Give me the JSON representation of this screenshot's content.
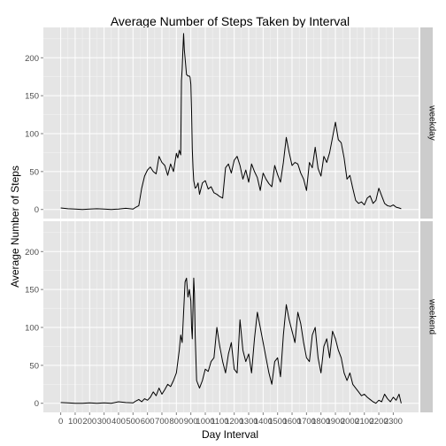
{
  "chart_data": {
    "type": "line",
    "title": "Average Number of Steps Taken by Interval",
    "xlabel": "Day Interval",
    "ylabel": "Average Number of Steps",
    "xlim": [
      -120,
      2475
    ],
    "ylim": [
      -12,
      240
    ],
    "x_ticks": [
      0,
      100,
      200,
      300,
      400,
      500,
      600,
      700,
      800,
      900,
      1000,
      1100,
      1200,
      1300,
      1400,
      1500,
      1600,
      1700,
      1800,
      1900,
      2000,
      2100,
      2200,
      2300
    ],
    "x_tick_labels": [
      "0",
      "100",
      "200",
      "300",
      "400",
      "500",
      "600",
      "700",
      "800",
      "900",
      "1000",
      "1100",
      "1200",
      "1300",
      "1400",
      "1500",
      "1600",
      "1700",
      "1800",
      "1900",
      "2000",
      "2100",
      "2200",
      "2300"
    ],
    "y_ticks": [
      0,
      50,
      100,
      150,
      200
    ],
    "y_tick_labels": [
      "0",
      "50",
      "100",
      "150",
      "200"
    ],
    "grid": true,
    "facets": [
      {
        "label": "weekday",
        "points": [
          [
            0,
            2
          ],
          [
            50,
            1
          ],
          [
            100,
            0.5
          ],
          [
            150,
            0
          ],
          [
            200,
            0.5
          ],
          [
            250,
            1
          ],
          [
            300,
            0.5
          ],
          [
            350,
            0
          ],
          [
            400,
            0.5
          ],
          [
            450,
            1.5
          ],
          [
            500,
            0.5
          ],
          [
            520,
            3
          ],
          [
            540,
            5
          ],
          [
            560,
            28
          ],
          [
            580,
            44
          ],
          [
            600,
            52
          ],
          [
            620,
            56
          ],
          [
            640,
            50
          ],
          [
            660,
            47
          ],
          [
            680,
            70
          ],
          [
            700,
            62
          ],
          [
            720,
            58
          ],
          [
            740,
            45
          ],
          [
            760,
            60
          ],
          [
            780,
            50
          ],
          [
            800,
            74
          ],
          [
            810,
            68
          ],
          [
            820,
            78
          ],
          [
            830,
            72
          ],
          [
            835,
            170
          ],
          [
            840,
            185
          ],
          [
            845,
            210
          ],
          [
            850,
            232
          ],
          [
            855,
            210
          ],
          [
            860,
            200
          ],
          [
            870,
            178
          ],
          [
            880,
            176
          ],
          [
            890,
            176
          ],
          [
            895,
            174
          ],
          [
            900,
            165
          ],
          [
            905,
            130
          ],
          [
            910,
            80
          ],
          [
            915,
            55
          ],
          [
            920,
            38
          ],
          [
            930,
            28
          ],
          [
            940,
            30
          ],
          [
            950,
            35
          ],
          [
            960,
            20
          ],
          [
            980,
            35
          ],
          [
            1000,
            38
          ],
          [
            1020,
            27
          ],
          [
            1040,
            30
          ],
          [
            1060,
            22
          ],
          [
            1080,
            20
          ],
          [
            1100,
            17
          ],
          [
            1120,
            15
          ],
          [
            1140,
            55
          ],
          [
            1160,
            60
          ],
          [
            1180,
            48
          ],
          [
            1200,
            65
          ],
          [
            1220,
            70
          ],
          [
            1240,
            58
          ],
          [
            1260,
            40
          ],
          [
            1280,
            52
          ],
          [
            1300,
            36
          ],
          [
            1320,
            60
          ],
          [
            1340,
            50
          ],
          [
            1360,
            42
          ],
          [
            1380,
            25
          ],
          [
            1400,
            48
          ],
          [
            1420,
            40
          ],
          [
            1440,
            34
          ],
          [
            1460,
            30
          ],
          [
            1480,
            58
          ],
          [
            1500,
            46
          ],
          [
            1520,
            36
          ],
          [
            1540,
            62
          ],
          [
            1560,
            95
          ],
          [
            1580,
            75
          ],
          [
            1600,
            58
          ],
          [
            1620,
            62
          ],
          [
            1640,
            60
          ],
          [
            1660,
            48
          ],
          [
            1680,
            40
          ],
          [
            1700,
            25
          ],
          [
            1720,
            62
          ],
          [
            1740,
            55
          ],
          [
            1760,
            82
          ],
          [
            1780,
            54
          ],
          [
            1800,
            44
          ],
          [
            1820,
            70
          ],
          [
            1840,
            62
          ],
          [
            1860,
            75
          ],
          [
            1880,
            95
          ],
          [
            1900,
            115
          ],
          [
            1920,
            92
          ],
          [
            1940,
            88
          ],
          [
            1960,
            68
          ],
          [
            1980,
            40
          ],
          [
            2000,
            45
          ],
          [
            2020,
            28
          ],
          [
            2040,
            12
          ],
          [
            2060,
            8
          ],
          [
            2080,
            10
          ],
          [
            2100,
            6
          ],
          [
            2120,
            15
          ],
          [
            2140,
            18
          ],
          [
            2160,
            8
          ],
          [
            2180,
            12
          ],
          [
            2200,
            28
          ],
          [
            2220,
            18
          ],
          [
            2240,
            8
          ],
          [
            2260,
            5
          ],
          [
            2280,
            4
          ],
          [
            2300,
            6
          ],
          [
            2320,
            3
          ],
          [
            2340,
            2
          ],
          [
            2355,
            1
          ]
        ]
      },
      {
        "label": "weekend",
        "points": [
          [
            0,
            1
          ],
          [
            50,
            0.5
          ],
          [
            100,
            0
          ],
          [
            150,
            0
          ],
          [
            200,
            0.5
          ],
          [
            250,
            0
          ],
          [
            300,
            0.5
          ],
          [
            350,
            0
          ],
          [
            400,
            2
          ],
          [
            450,
            1
          ],
          [
            500,
            0.5
          ],
          [
            520,
            3
          ],
          [
            540,
            5
          ],
          [
            560,
            2
          ],
          [
            580,
            6
          ],
          [
            600,
            4
          ],
          [
            620,
            8
          ],
          [
            640,
            15
          ],
          [
            660,
            10
          ],
          [
            680,
            20
          ],
          [
            700,
            12
          ],
          [
            720,
            18
          ],
          [
            740,
            25
          ],
          [
            760,
            22
          ],
          [
            780,
            30
          ],
          [
            800,
            40
          ],
          [
            810,
            55
          ],
          [
            820,
            70
          ],
          [
            830,
            90
          ],
          [
            840,
            80
          ],
          [
            850,
            120
          ],
          [
            855,
            140
          ],
          [
            860,
            160
          ],
          [
            870,
            165
          ],
          [
            880,
            140
          ],
          [
            890,
            150
          ],
          [
            900,
            135
          ],
          [
            905,
            100
          ],
          [
            910,
            85
          ],
          [
            920,
            165
          ],
          [
            925,
            145
          ],
          [
            930,
            90
          ],
          [
            940,
            30
          ],
          [
            950,
            25
          ],
          [
            960,
            20
          ],
          [
            980,
            30
          ],
          [
            1000,
            45
          ],
          [
            1020,
            42
          ],
          [
            1040,
            55
          ],
          [
            1060,
            60
          ],
          [
            1080,
            100
          ],
          [
            1100,
            75
          ],
          [
            1120,
            55
          ],
          [
            1140,
            40
          ],
          [
            1160,
            65
          ],
          [
            1180,
            80
          ],
          [
            1200,
            45
          ],
          [
            1220,
            40
          ],
          [
            1240,
            110
          ],
          [
            1260,
            70
          ],
          [
            1280,
            55
          ],
          [
            1300,
            65
          ],
          [
            1320,
            40
          ],
          [
            1340,
            85
          ],
          [
            1360,
            120
          ],
          [
            1380,
            100
          ],
          [
            1400,
            80
          ],
          [
            1420,
            60
          ],
          [
            1440,
            40
          ],
          [
            1460,
            25
          ],
          [
            1480,
            55
          ],
          [
            1500,
            60
          ],
          [
            1520,
            35
          ],
          [
            1540,
            90
          ],
          [
            1560,
            130
          ],
          [
            1580,
            110
          ],
          [
            1600,
            95
          ],
          [
            1620,
            80
          ],
          [
            1640,
            120
          ],
          [
            1660,
            105
          ],
          [
            1680,
            80
          ],
          [
            1700,
            60
          ],
          [
            1720,
            55
          ],
          [
            1740,
            90
          ],
          [
            1760,
            100
          ],
          [
            1780,
            60
          ],
          [
            1800,
            40
          ],
          [
            1820,
            75
          ],
          [
            1840,
            85
          ],
          [
            1860,
            60
          ],
          [
            1880,
            95
          ],
          [
            1900,
            85
          ],
          [
            1920,
            70
          ],
          [
            1940,
            60
          ],
          [
            1960,
            40
          ],
          [
            1980,
            30
          ],
          [
            2000,
            40
          ],
          [
            2020,
            25
          ],
          [
            2040,
            20
          ],
          [
            2060,
            15
          ],
          [
            2080,
            10
          ],
          [
            2100,
            12
          ],
          [
            2120,
            8
          ],
          [
            2140,
            5
          ],
          [
            2160,
            2
          ],
          [
            2180,
            0
          ],
          [
            2200,
            4
          ],
          [
            2220,
            2
          ],
          [
            2240,
            12
          ],
          [
            2260,
            6
          ],
          [
            2280,
            2
          ],
          [
            2300,
            8
          ],
          [
            2320,
            4
          ],
          [
            2340,
            12
          ],
          [
            2355,
            0
          ]
        ]
      }
    ]
  }
}
